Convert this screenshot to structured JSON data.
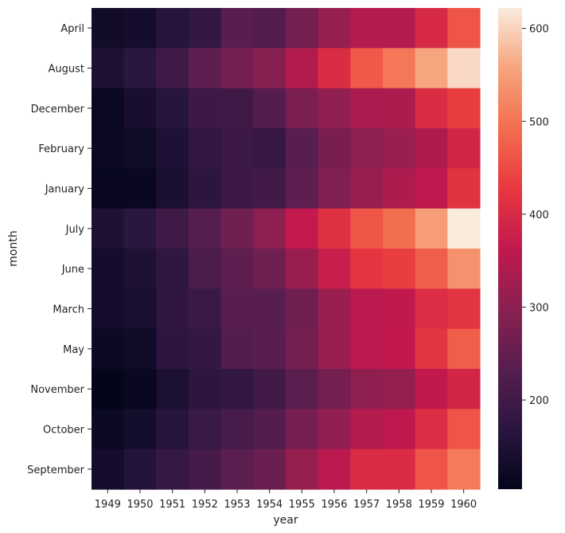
{
  "chart_data": {
    "type": "heatmap",
    "xlabel": "year",
    "ylabel": "month",
    "x_categories": [
      "1949",
      "1950",
      "1951",
      "1952",
      "1953",
      "1954",
      "1955",
      "1956",
      "1957",
      "1958",
      "1959",
      "1960"
    ],
    "y_categories": [
      "April",
      "August",
      "December",
      "February",
      "January",
      "July",
      "June",
      "March",
      "May",
      "November",
      "October",
      "September"
    ],
    "values": [
      [
        129,
        135,
        163,
        181,
        235,
        227,
        269,
        313,
        348,
        348,
        396,
        461
      ],
      [
        148,
        170,
        199,
        242,
        272,
        293,
        347,
        405,
        467,
        505,
        559,
        606
      ],
      [
        118,
        140,
        166,
        194,
        201,
        229,
        278,
        306,
        336,
        337,
        405,
        432
      ],
      [
        118,
        126,
        150,
        180,
        196,
        188,
        233,
        277,
        301,
        318,
        342,
        391
      ],
      [
        112,
        115,
        145,
        171,
        196,
        204,
        242,
        284,
        315,
        340,
        360,
        417
      ],
      [
        148,
        170,
        199,
        230,
        264,
        302,
        364,
        413,
        465,
        491,
        548,
        622
      ],
      [
        135,
        149,
        178,
        218,
        243,
        264,
        315,
        374,
        422,
        435,
        472,
        535
      ],
      [
        132,
        141,
        178,
        193,
        236,
        235,
        267,
        317,
        356,
        362,
        406,
        419
      ],
      [
        121,
        125,
        172,
        183,
        229,
        234,
        270,
        318,
        355,
        363,
        420,
        472
      ],
      [
        104,
        114,
        146,
        172,
        180,
        203,
        237,
        271,
        305,
        310,
        362,
        390
      ],
      [
        119,
        133,
        162,
        191,
        211,
        229,
        274,
        306,
        347,
        359,
        407,
        461
      ],
      [
        136,
        158,
        184,
        209,
        237,
        259,
        312,
        355,
        404,
        404,
        463,
        508
      ]
    ],
    "colorbar": {
      "min": 104,
      "max": 622,
      "ticks": [
        200,
        300,
        400,
        500,
        600
      ],
      "colormap": "rocket"
    },
    "colorscale_stops": [
      "#03051a",
      "#2a1640",
      "#571e4f",
      "#8a2051",
      "#c1194e",
      "#e8383f",
      "#f36e4f",
      "#f6a47c",
      "#faebdd"
    ]
  }
}
